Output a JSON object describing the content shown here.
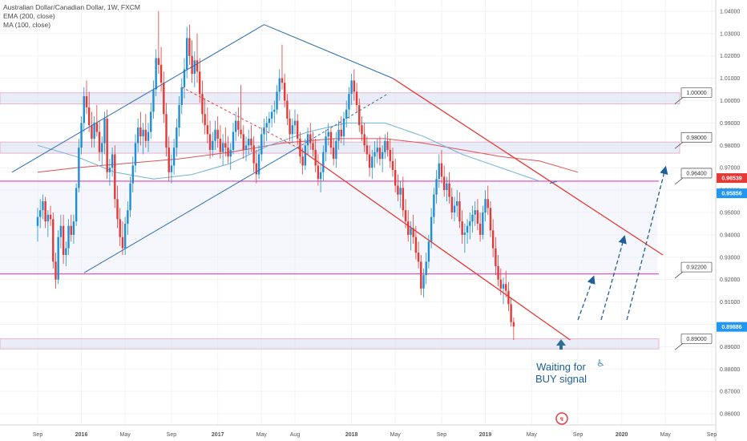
{
  "chart_data": {
    "type": "candlestick",
    "title": "Australian Dollar/Canadian Dollar, 1W, FXCM",
    "indicators": [
      "EMA (200, close)",
      "MA (100, close)"
    ],
    "price_axis": {
      "range": [
        0.855,
        1.045
      ],
      "ticks": [
        "1.04000",
        "1.03000",
        "1.02000",
        "1.01000",
        "1.00000",
        "0.99000",
        "0.98000",
        "0.97000",
        "0.96000",
        "0.95000",
        "0.94000",
        "0.93000",
        "0.92000",
        "0.91000",
        "0.90000",
        "0.89000",
        "0.88000",
        "0.87000",
        "0.86000"
      ]
    },
    "time_axis": {
      "labels": [
        "Sep",
        "2016",
        "May",
        "Sep",
        "2017",
        "May",
        "Aug",
        "2018",
        "May",
        "Sep",
        "2019",
        "May",
        "Sep",
        "2020",
        "May",
        "Sep"
      ],
      "positions_weeks": [
        0,
        17,
        34,
        52,
        70,
        87,
        100,
        122,
        139,
        157,
        174,
        192,
        210,
        227,
        244,
        262
      ]
    },
    "price_tags": [
      {
        "value": "0.96539",
        "color": "#e53935"
      },
      {
        "value": "0.95856",
        "color": "#2196f3"
      },
      {
        "value": "0.89886",
        "color": "#2196f3"
      }
    ],
    "level_callouts": [
      "1.00000",
      "0.98000",
      "0.96400",
      "0.92200",
      "0.89000"
    ],
    "zones": [
      {
        "low": 0.9985,
        "high": 1.0035
      },
      {
        "low": 0.9765,
        "high": 0.9815
      },
      {
        "low": 0.889,
        "high": 0.8935
      },
      {
        "low": 0.9225,
        "high": 0.964
      }
    ],
    "horizontal_lines": [
      0.964,
      0.9225
    ],
    "annotation": {
      "line1": "Waiting for",
      "line2": "BUY signal"
    },
    "candles": [
      [
        0.944,
        0.952,
        0.937,
        0.948
      ],
      [
        0.948,
        0.956,
        0.943,
        0.951
      ],
      [
        0.951,
        0.958,
        0.947,
        0.955
      ],
      [
        0.955,
        0.957,
        0.943,
        0.946
      ],
      [
        0.946,
        0.951,
        0.939,
        0.949
      ],
      [
        0.949,
        0.953,
        0.944,
        0.947
      ],
      [
        0.947,
        0.95,
        0.925,
        0.928
      ],
      [
        0.928,
        0.932,
        0.916,
        0.92
      ],
      [
        0.92,
        0.942,
        0.918,
        0.939
      ],
      [
        0.939,
        0.949,
        0.934,
        0.944
      ],
      [
        0.944,
        0.949,
        0.927,
        0.931
      ],
      [
        0.931,
        0.937,
        0.926,
        0.934
      ],
      [
        0.934,
        0.947,
        0.931,
        0.944
      ],
      [
        0.944,
        0.949,
        0.937,
        0.94
      ],
      [
        0.94,
        0.949,
        0.936,
        0.946
      ],
      [
        0.946,
        0.963,
        0.944,
        0.961
      ],
      [
        0.961,
        0.983,
        0.959,
        0.979
      ],
      [
        0.979,
        0.993,
        0.976,
        0.99
      ],
      [
        0.99,
        1.006,
        0.986,
        1.002
      ],
      [
        1.002,
        1.009,
        0.994,
        0.997
      ],
      [
        0.997,
        1.004,
        0.986,
        0.989
      ],
      [
        0.989,
        0.995,
        0.979,
        0.983
      ],
      [
        0.983,
        0.993,
        0.979,
        0.99
      ],
      [
        0.99,
        0.998,
        0.984,
        0.986
      ],
      [
        0.986,
        0.991,
        0.973,
        0.977
      ],
      [
        0.977,
        0.984,
        0.971,
        0.981
      ],
      [
        0.981,
        0.995,
        0.976,
        0.992
      ],
      [
        0.992,
        0.996,
        0.965,
        0.968
      ],
      [
        0.968,
        0.974,
        0.962,
        0.97
      ],
      [
        0.97,
        0.979,
        0.966,
        0.976
      ],
      [
        0.976,
        0.98,
        0.952,
        0.956
      ],
      [
        0.956,
        0.962,
        0.943,
        0.947
      ],
      [
        0.947,
        0.952,
        0.935,
        0.939
      ],
      [
        0.939,
        0.946,
        0.931,
        0.934
      ],
      [
        0.934,
        0.948,
        0.931,
        0.945
      ],
      [
        0.945,
        0.955,
        0.94,
        0.951
      ],
      [
        0.951,
        0.966,
        0.948,
        0.963
      ],
      [
        0.963,
        0.975,
        0.959,
        0.971
      ],
      [
        0.971,
        0.985,
        0.968,
        0.981
      ],
      [
        0.981,
        0.992,
        0.977,
        0.988
      ],
      [
        0.988,
        0.995,
        0.98,
        0.984
      ],
      [
        0.984,
        0.99,
        0.976,
        0.987
      ],
      [
        0.987,
        0.994,
        0.979,
        0.982
      ],
      [
        0.982,
        0.99,
        0.977,
        0.986
      ],
      [
        0.986,
        0.999,
        0.983,
        0.995
      ],
      [
        0.995,
        1.009,
        0.992,
        1.005
      ],
      [
        1.005,
        1.023,
        1.002,
        1.019
      ],
      [
        1.019,
        1.04,
        1.012,
        1.016
      ],
      [
        1.016,
        1.024,
        1.004,
        1.008
      ],
      [
        1.008,
        1.013,
        0.99,
        0.994
      ],
      [
        0.994,
        0.999,
        0.975,
        0.979
      ],
      [
        0.979,
        0.984,
        0.964,
        0.968
      ],
      [
        0.968,
        0.976,
        0.963,
        0.971
      ],
      [
        0.971,
        0.983,
        0.967,
        0.979
      ],
      [
        0.979,
        0.992,
        0.975,
        0.988
      ],
      [
        0.988,
        1.002,
        0.984,
        0.998
      ],
      [
        0.998,
        1.01,
        0.994,
        1.006
      ],
      [
        1.006,
        1.019,
        1.001,
        1.014
      ],
      [
        1.014,
        1.033,
        1.01,
        1.028
      ],
      [
        1.028,
        1.034,
        1.016,
        1.02
      ],
      [
        1.02,
        1.027,
        1.008,
        1.012
      ],
      [
        1.012,
        1.022,
        1.006,
        1.018
      ],
      [
        1.018,
        1.03,
        1.008,
        1.013
      ],
      [
        1.013,
        1.019,
        0.999,
        1.003
      ],
      [
        1.003,
        1.009,
        0.99,
        0.994
      ],
      [
        0.994,
        1.001,
        0.985,
        0.989
      ],
      [
        0.989,
        0.997,
        0.981,
        0.985
      ],
      [
        0.985,
        0.991,
        0.974,
        0.978
      ],
      [
        0.978,
        0.986,
        0.975,
        0.982
      ],
      [
        0.982,
        0.991,
        0.978,
        0.987
      ],
      [
        0.987,
        0.993,
        0.979,
        0.983
      ],
      [
        0.983,
        0.989,
        0.974,
        0.977
      ],
      [
        0.977,
        0.985,
        0.971,
        0.981
      ],
      [
        0.981,
        0.988,
        0.975,
        0.979
      ],
      [
        0.979,
        0.984,
        0.972,
        0.975
      ],
      [
        0.975,
        0.981,
        0.969,
        0.978
      ],
      [
        0.978,
        0.99,
        0.976,
        0.986
      ],
      [
        0.986,
        0.995,
        0.982,
        0.991
      ],
      [
        0.991,
        0.997,
        0.984,
        0.987
      ],
      [
        0.987,
        1.007,
        0.983,
        0.985
      ],
      [
        0.985,
        0.989,
        0.974,
        0.978
      ],
      [
        0.978,
        0.984,
        0.973,
        0.98
      ],
      [
        0.98,
        0.987,
        0.976,
        0.983
      ],
      [
        0.983,
        0.989,
        0.977,
        0.98
      ],
      [
        0.98,
        0.984,
        0.968,
        0.972
      ],
      [
        0.972,
        0.978,
        0.963,
        0.967
      ],
      [
        0.967,
        0.98,
        0.965,
        0.976
      ],
      [
        0.976,
        0.988,
        0.973,
        0.985
      ],
      [
        0.985,
        0.992,
        0.98,
        0.988
      ],
      [
        0.988,
        0.993,
        0.982,
        0.99
      ],
      [
        0.99,
        0.995,
        0.986,
        0.992
      ],
      [
        0.992,
        0.998,
        0.988,
        0.995
      ],
      [
        0.995,
        1.0,
        0.99,
        0.996
      ],
      [
        0.996,
        1.007,
        0.994,
        1.004
      ],
      [
        1.004,
        1.014,
        1.0,
        1.01
      ],
      [
        1.01,
        1.025,
        1.005,
        1.008
      ],
      [
        1.008,
        1.012,
        0.997,
        1.0
      ],
      [
        1.0,
        1.003,
        0.989,
        0.992
      ],
      [
        0.992,
        0.996,
        0.982,
        0.985
      ],
      [
        0.985,
        0.992,
        0.981,
        0.989
      ],
      [
        0.989,
        0.996,
        0.985,
        0.991
      ],
      [
        0.991,
        0.994,
        0.98,
        0.983
      ],
      [
        0.983,
        0.986,
        0.972,
        0.975
      ],
      [
        0.975,
        0.979,
        0.967,
        0.971
      ],
      [
        0.971,
        0.983,
        0.969,
        0.98
      ],
      [
        0.98,
        0.988,
        0.976,
        0.985
      ],
      [
        0.985,
        0.99,
        0.978,
        0.981
      ],
      [
        0.981,
        0.986,
        0.975,
        0.978
      ],
      [
        0.978,
        0.983,
        0.968,
        0.971
      ],
      [
        0.971,
        0.976,
        0.962,
        0.965
      ],
      [
        0.965,
        0.972,
        0.959,
        0.968
      ],
      [
        0.968,
        0.98,
        0.964,
        0.977
      ],
      [
        0.977,
        0.987,
        0.973,
        0.984
      ],
      [
        0.984,
        0.99,
        0.98,
        0.986
      ],
      [
        0.986,
        0.988,
        0.976,
        0.979
      ],
      [
        0.979,
        0.983,
        0.971,
        0.974
      ],
      [
        0.974,
        0.986,
        0.97,
        0.982
      ],
      [
        0.982,
        0.991,
        0.978,
        0.987
      ],
      [
        0.987,
        0.993,
        0.981,
        0.984
      ],
      [
        0.984,
        0.995,
        0.98,
        0.992
      ],
      [
        0.992,
        1.0,
        0.988,
        0.996
      ],
      [
        0.996,
        1.006,
        0.992,
        1.003
      ],
      [
        1.003,
        1.012,
        0.998,
        1.009
      ],
      [
        1.009,
        1.014,
        1.0,
        1.004
      ],
      [
        1.004,
        1.008,
        0.995,
        0.998
      ],
      [
        0.998,
        1.001,
        0.986,
        0.989
      ],
      [
        0.989,
        0.993,
        0.982,
        0.985
      ],
      [
        0.985,
        0.99,
        0.977,
        0.98
      ],
      [
        0.98,
        0.984,
        0.973,
        0.976
      ],
      [
        0.976,
        0.98,
        0.966,
        0.97
      ],
      [
        0.97,
        0.978,
        0.965,
        0.975
      ],
      [
        0.975,
        0.982,
        0.97,
        0.977
      ],
      [
        0.977,
        0.983,
        0.972,
        0.979
      ],
      [
        0.979,
        0.984,
        0.971,
        0.974
      ],
      [
        0.974,
        0.98,
        0.968,
        0.977
      ],
      [
        0.977,
        0.985,
        0.974,
        0.982
      ],
      [
        0.982,
        0.986,
        0.975,
        0.978
      ],
      [
        0.978,
        0.983,
        0.97,
        0.973
      ],
      [
        0.973,
        0.979,
        0.966,
        0.969
      ],
      [
        0.969,
        0.974,
        0.959,
        0.962
      ],
      [
        0.962,
        0.967,
        0.955,
        0.958
      ],
      [
        0.958,
        0.964,
        0.952,
        0.961
      ],
      [
        0.961,
        0.966,
        0.948,
        0.951
      ],
      [
        0.951,
        0.956,
        0.943,
        0.946
      ],
      [
        0.946,
        0.951,
        0.937,
        0.94
      ],
      [
        0.94,
        0.946,
        0.933,
        0.943
      ],
      [
        0.943,
        0.949,
        0.936,
        0.939
      ],
      [
        0.939,
        0.944,
        0.929,
        0.932
      ],
      [
        0.932,
        0.937,
        0.925,
        0.928
      ],
      [
        0.928,
        0.931,
        0.913,
        0.916
      ],
      [
        0.916,
        0.925,
        0.912,
        0.922
      ],
      [
        0.922,
        0.932,
        0.918,
        0.928
      ],
      [
        0.928,
        0.94,
        0.925,
        0.937
      ],
      [
        0.937,
        0.952,
        0.934,
        0.948
      ],
      [
        0.948,
        0.961,
        0.945,
        0.958
      ],
      [
        0.958,
        0.969,
        0.954,
        0.965
      ],
      [
        0.965,
        0.976,
        0.961,
        0.972
      ],
      [
        0.972,
        0.978,
        0.963,
        0.966
      ],
      [
        0.966,
        0.971,
        0.957,
        0.96
      ],
      [
        0.96,
        0.966,
        0.955,
        0.963
      ],
      [
        0.963,
        0.968,
        0.954,
        0.957
      ],
      [
        0.957,
        0.961,
        0.947,
        0.95
      ],
      [
        0.95,
        0.957,
        0.946,
        0.953
      ],
      [
        0.953,
        0.96,
        0.948,
        0.955
      ],
      [
        0.955,
        0.959,
        0.943,
        0.946
      ],
      [
        0.946,
        0.951,
        0.936,
        0.94
      ],
      [
        0.94,
        0.945,
        0.932,
        0.941
      ],
      [
        0.941,
        0.947,
        0.936,
        0.944
      ],
      [
        0.944,
        0.95,
        0.938,
        0.946
      ],
      [
        0.946,
        0.953,
        0.941,
        0.949
      ],
      [
        0.949,
        0.955,
        0.944,
        0.951
      ],
      [
        0.951,
        0.956,
        0.942,
        0.945
      ],
      [
        0.945,
        0.95,
        0.937,
        0.94
      ],
      [
        0.94,
        0.953,
        0.938,
        0.95
      ],
      [
        0.95,
        0.96,
        0.946,
        0.956
      ],
      [
        0.956,
        0.962,
        0.949,
        0.952
      ],
      [
        0.952,
        0.955,
        0.939,
        0.942
      ],
      [
        0.942,
        0.947,
        0.93,
        0.934
      ],
      [
        0.934,
        0.939,
        0.922,
        0.926
      ],
      [
        0.926,
        0.931,
        0.917,
        0.92
      ],
      [
        0.92,
        0.925,
        0.913,
        0.916
      ],
      [
        0.916,
        0.921,
        0.909,
        0.918
      ],
      [
        0.918,
        0.924,
        0.912,
        0.915
      ],
      [
        0.915,
        0.919,
        0.906,
        0.909
      ],
      [
        0.909,
        0.912,
        0.899,
        0.901
      ],
      [
        0.901,
        0.903,
        0.893,
        0.899
      ]
    ],
    "ema200": [
      [
        0,
        0.968
      ],
      [
        15,
        0.97
      ],
      [
        35,
        0.972
      ],
      [
        55,
        0.974
      ],
      [
        75,
        0.977
      ],
      [
        95,
        0.981
      ],
      [
        115,
        0.983
      ],
      [
        135,
        0.983
      ],
      [
        150,
        0.981
      ],
      [
        165,
        0.978
      ],
      [
        180,
        0.975
      ],
      [
        195,
        0.973
      ],
      [
        210,
        0.968
      ]
    ],
    "ma100": [
      [
        0,
        0.98
      ],
      [
        15,
        0.975
      ],
      [
        30,
        0.968
      ],
      [
        45,
        0.965
      ],
      [
        60,
        0.967
      ],
      [
        75,
        0.972
      ],
      [
        90,
        0.98
      ],
      [
        105,
        0.986
      ],
      [
        120,
        0.99
      ],
      [
        135,
        0.99
      ],
      [
        150,
        0.984
      ],
      [
        165,
        0.976
      ],
      [
        180,
        0.97
      ],
      [
        195,
        0.964
      ]
    ],
    "trendlines": [
      {
        "color": "#2b6cb0",
        "dashed": false,
        "points": [
          [
            -10,
            0.968
          ],
          [
            88,
            1.034
          ]
        ]
      },
      {
        "color": "#2b6cb0",
        "dashed": false,
        "points": [
          [
            88,
            1.034
          ],
          [
            138,
            1.01
          ]
        ]
      },
      {
        "color": "#2b6cb0",
        "dashed": false,
        "points": [
          [
            18,
            0.923
          ],
          [
            101,
            0.979
          ]
        ]
      },
      {
        "color": "#2b6cb0",
        "dashed": true,
        "points": [
          [
            101,
            0.979
          ],
          [
            136,
            1.003
          ]
        ]
      },
      {
        "color": "#e53935",
        "dashed": true,
        "points": [
          [
            56,
            1.006
          ],
          [
            101,
            0.979
          ]
        ]
      },
      {
        "color": "#e53935",
        "dashed": false,
        "points": [
          [
            101,
            0.979
          ],
          [
            207,
            0.893
          ]
        ]
      },
      {
        "color": "#e53935",
        "dashed": false,
        "points": [
          [
            138,
            1.01
          ],
          [
            243,
            0.931
          ]
        ]
      },
      {
        "color": "#2b6cb0",
        "dashed": false,
        "points": [
          [
            199,
            0.963
          ],
          [
            202,
            0.964
          ]
        ]
      }
    ],
    "projection_arrows": [
      {
        "from": [
          210,
          0.902
        ],
        "to": [
          216,
          0.921
        ]
      },
      {
        "from": [
          219,
          0.902
        ],
        "to": [
          228,
          0.939
        ]
      },
      {
        "from": [
          229,
          0.902
        ],
        "to": [
          244,
          0.97
        ]
      }
    ]
  }
}
